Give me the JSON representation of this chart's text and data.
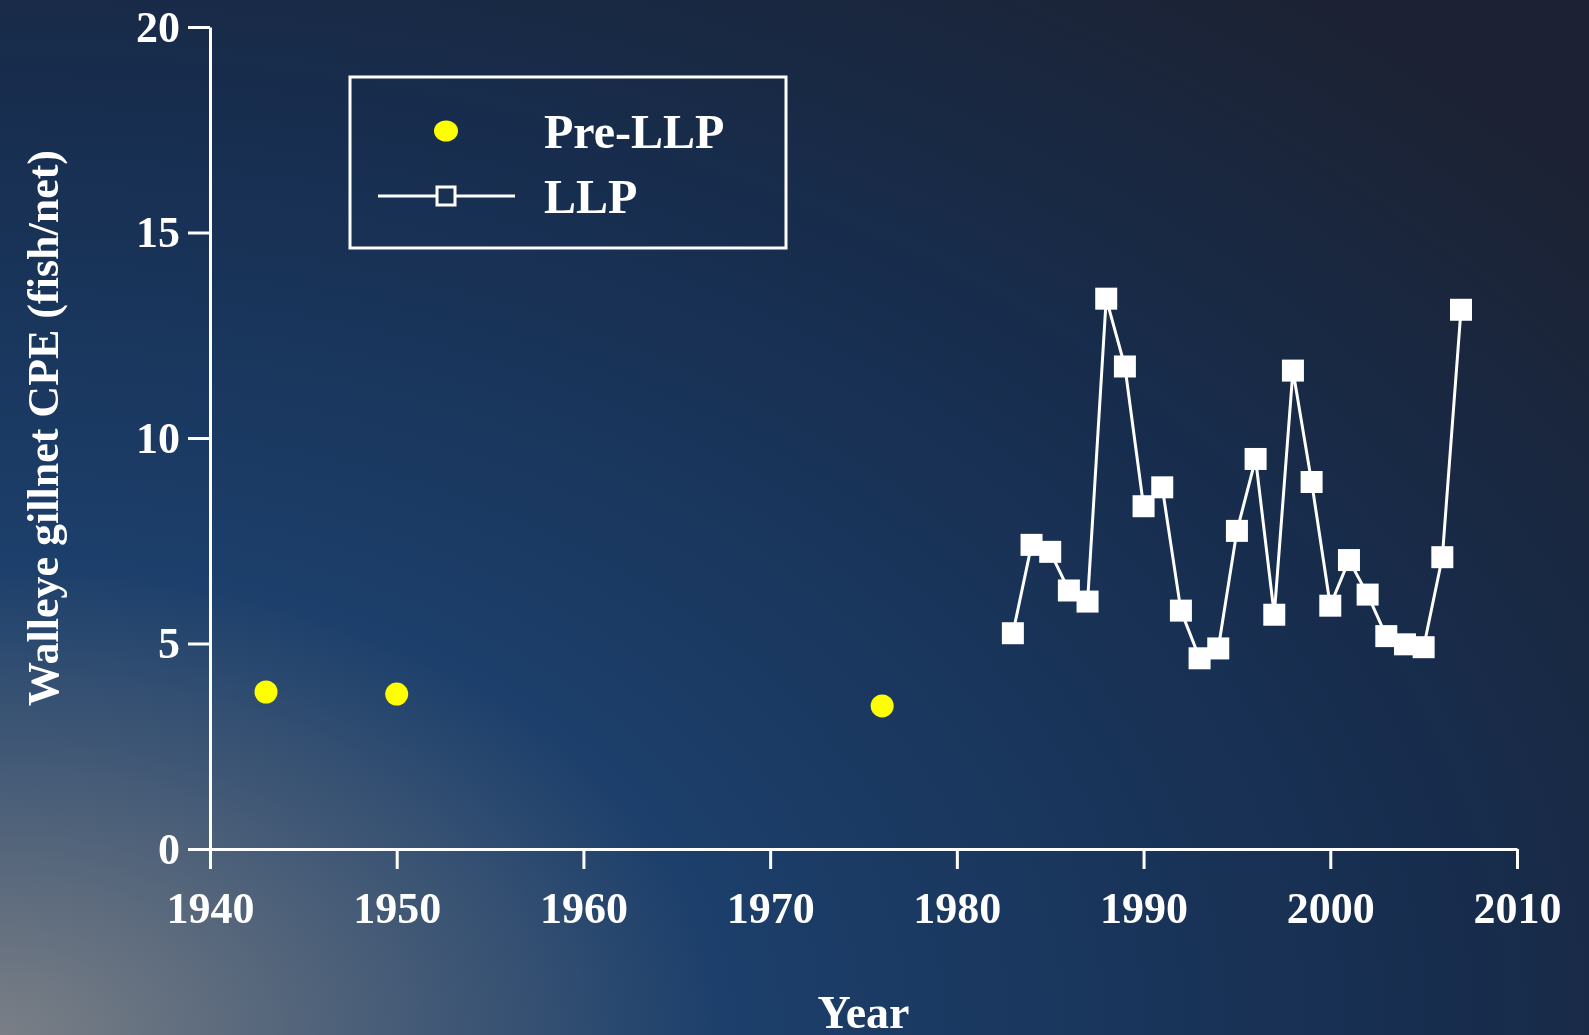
{
  "chart_data": {
    "type": "line",
    "xlabel": "Year",
    "ylabel": "Walleye gillnet CPE (fish/net)",
    "xlim": [
      1940,
      2010
    ],
    "xticks": [
      1940,
      1950,
      1960,
      1970,
      1980,
      1990,
      2000,
      2010
    ],
    "ylim": [
      0,
      20
    ],
    "yticks": [
      0,
      5,
      10,
      15,
      20
    ],
    "grid": false,
    "legend": "top left",
    "series": [
      {
        "name": "Pre-LLP",
        "type": "scatter",
        "marker": "circle",
        "color": "#ffff00",
        "x": [
          1943,
          1950,
          1976
        ],
        "values": [
          3.82,
          3.77,
          3.48
        ]
      },
      {
        "name": "LLP",
        "marker": "square",
        "line_style": "solid",
        "color": "#ffffff",
        "x": [
          1983,
          1984,
          1985,
          1986,
          1987,
          1988,
          1989,
          1990,
          1991,
          1992,
          1993,
          1994,
          1995,
          1996,
          1997,
          1998,
          1999,
          2000,
          2001,
          2002,
          2003,
          2004,
          2005,
          2006,
          2007
        ],
        "values": [
          5.25,
          7.4,
          7.23,
          6.29,
          6.02,
          13.39,
          11.74,
          8.34,
          8.8,
          5.8,
          4.64,
          4.88,
          7.74,
          9.49,
          5.7,
          11.64,
          8.93,
          5.92,
          7.03,
          6.19,
          5.18,
          4.98,
          4.91,
          7.1,
          13.12
        ]
      }
    ]
  }
}
